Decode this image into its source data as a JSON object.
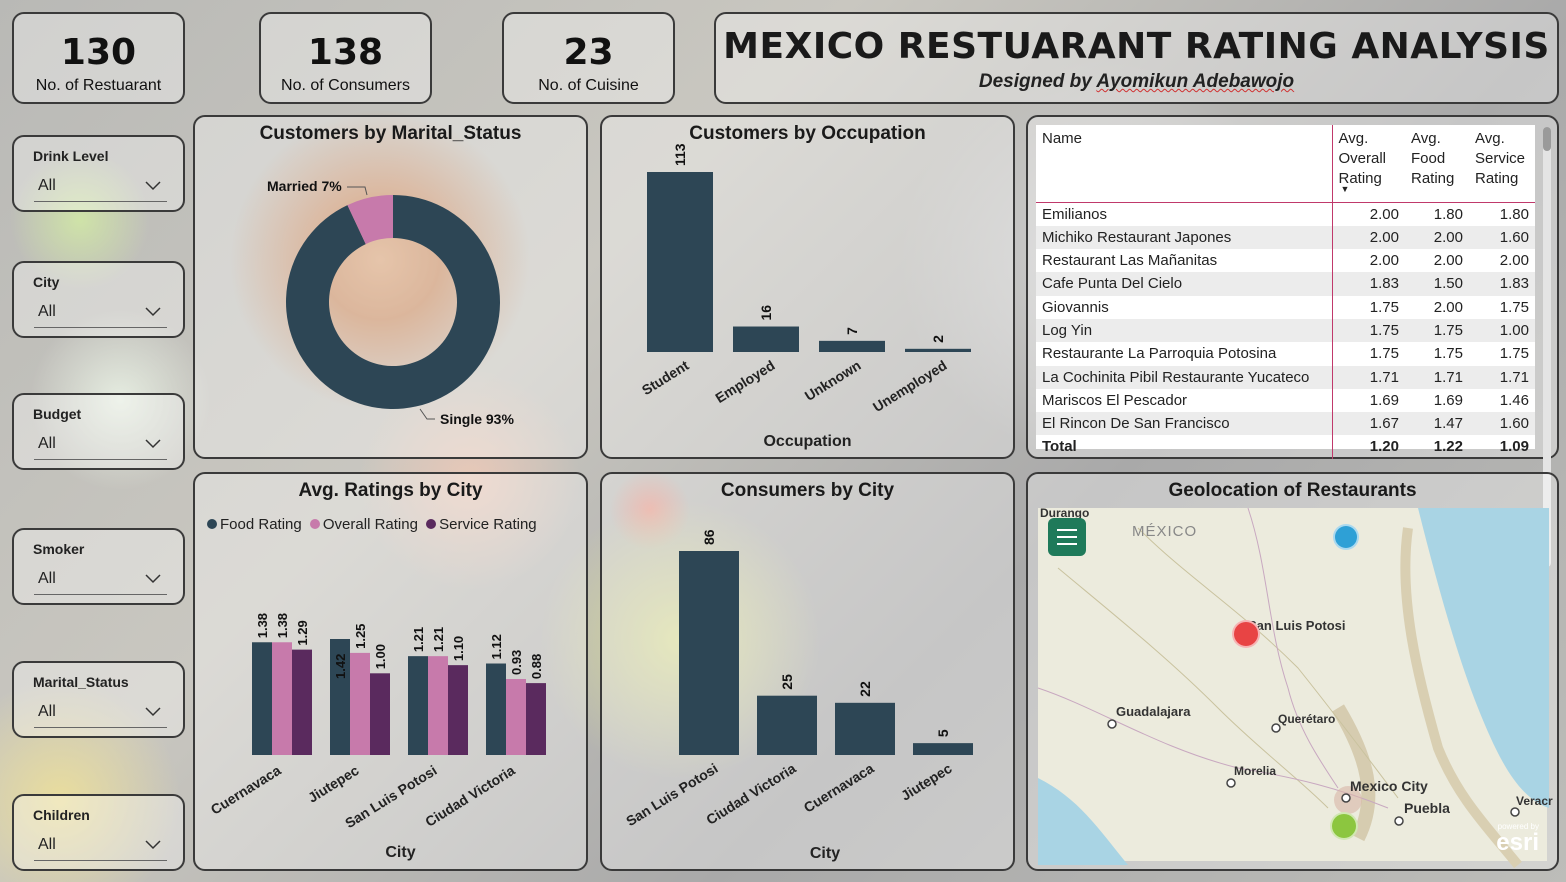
{
  "kpis": [
    {
      "value": "130",
      "label": "No. of Restuarant"
    },
    {
      "value": "138",
      "label": "No. of Consumers"
    },
    {
      "value": "23",
      "label": "No. of Cuisine"
    }
  ],
  "header": {
    "title": "MEXICO RESTUARANT RATING ANALYSIS",
    "subtitle_prefix": "Designed by ",
    "subtitle_name": "Ayomikun Adebawojo"
  },
  "slicers": [
    {
      "label": "Drink Level",
      "value": "All"
    },
    {
      "label": "City",
      "value": "All"
    },
    {
      "label": "Budget",
      "value": "All"
    },
    {
      "label": "Smoker",
      "value": "All"
    },
    {
      "label": "Marital_Status",
      "value": "All"
    },
    {
      "label": "Children",
      "value": "All"
    }
  ],
  "marital": {
    "title": "Customers by Marital_Status",
    "married_label": "Married 7%",
    "single_label": "Single 93%",
    "colors": {
      "single": "#2d4655",
      "married": "#c77aab"
    }
  },
  "occupation": {
    "title": "Customers by Occupation",
    "xlabel": "Occupation",
    "categories": [
      "Student",
      "Employed",
      "Unknown",
      "Unemployed"
    ],
    "values": [
      113,
      16,
      7,
      2
    ],
    "bar_color": "#2d4655"
  },
  "ratings_city": {
    "title": "Avg. Ratings by City",
    "xlabel": "City",
    "legend": [
      "Food Rating",
      "Overall Rating",
      "Service Rating"
    ],
    "colors": [
      "#2d4655",
      "#c77aab",
      "#5a2a5e"
    ],
    "categories": [
      "Cuernavaca",
      "Jiutepec",
      "San Luis Potosi",
      "Ciudad Victoria"
    ],
    "series": [
      {
        "name": "Food Rating",
        "values": [
          1.38,
          1.42,
          1.21,
          1.12
        ]
      },
      {
        "name": "Overall Rating",
        "values": [
          1.38,
          1.25,
          1.21,
          0.93
        ]
      },
      {
        "name": "Service Rating",
        "values": [
          1.29,
          1.0,
          1.1,
          0.88
        ]
      }
    ]
  },
  "consumers_city": {
    "title": "Consumers by City",
    "xlabel": "City",
    "categories": [
      "San Luis Potosi",
      "Ciudad Victoria",
      "Cuernavaca",
      "Jiutepec"
    ],
    "values": [
      86,
      25,
      22,
      5
    ],
    "bar_color": "#2d4655"
  },
  "table": {
    "headers": [
      "Name",
      "Avg. Overall Rating",
      "Avg. Food Rating",
      "Avg. Service Rating"
    ],
    "rows": [
      [
        "Emilianos",
        "2.00",
        "1.80",
        "1.80"
      ],
      [
        "Michiko Restaurant Japones",
        "2.00",
        "2.00",
        "1.60"
      ],
      [
        "Restaurant Las Mañanitas",
        "2.00",
        "2.00",
        "2.00"
      ],
      [
        "Cafe Punta Del Cielo",
        "1.83",
        "1.50",
        "1.83"
      ],
      [
        "Giovannis",
        "1.75",
        "2.00",
        "1.75"
      ],
      [
        "Log Yin",
        "1.75",
        "1.75",
        "1.00"
      ],
      [
        "Restaurante La Parroquia Potosina",
        "1.75",
        "1.75",
        "1.75"
      ],
      [
        "La Cochinita Pibil Restaurante Yucateco",
        "1.71",
        "1.71",
        "1.71"
      ],
      [
        "Mariscos El Pescador",
        "1.69",
        "1.69",
        "1.46"
      ],
      [
        "El Rincon De San Francisco",
        "1.67",
        "1.47",
        "1.60"
      ]
    ],
    "total": [
      "Total",
      "1.20",
      "1.22",
      "1.09"
    ]
  },
  "map": {
    "title": "Geolocation of Restaurants",
    "country_label": "MÉXICO",
    "cities": [
      "Durango",
      "San Luis Potosi",
      "Guadalajara",
      "Querétaro",
      "Morelia",
      "Mexico City",
      "Puebla",
      "Veracr"
    ],
    "watermark_small": "powered by",
    "watermark": "esri",
    "marker_colors": [
      "#2ea0d6",
      "#e84444",
      "#8cc63f"
    ]
  },
  "chart_data": [
    {
      "type": "pie",
      "title": "Customers by Marital_Status",
      "categories": [
        "Single",
        "Married"
      ],
      "values": [
        93,
        7
      ]
    },
    {
      "type": "bar",
      "title": "Customers by Occupation",
      "xlabel": "Occupation",
      "categories": [
        "Student",
        "Employed",
        "Unknown",
        "Unemployed"
      ],
      "values": [
        113,
        16,
        7,
        2
      ]
    },
    {
      "type": "bar",
      "title": "Avg. Ratings by City",
      "xlabel": "City",
      "categories": [
        "Cuernavaca",
        "Jiutepec",
        "San Luis Potosi",
        "Ciudad Victoria"
      ],
      "series": [
        {
          "name": "Food Rating",
          "values": [
            1.38,
            1.42,
            1.21,
            1.12
          ]
        },
        {
          "name": "Overall Rating",
          "values": [
            1.38,
            1.25,
            1.21,
            0.93
          ]
        },
        {
          "name": "Service Rating",
          "values": [
            1.29,
            1.0,
            1.1,
            0.88
          ]
        }
      ]
    },
    {
      "type": "bar",
      "title": "Consumers by City",
      "xlabel": "City",
      "categories": [
        "San Luis Potosi",
        "Ciudad Victoria",
        "Cuernavaca",
        "Jiutepec"
      ],
      "values": [
        86,
        25,
        22,
        5
      ]
    }
  ]
}
